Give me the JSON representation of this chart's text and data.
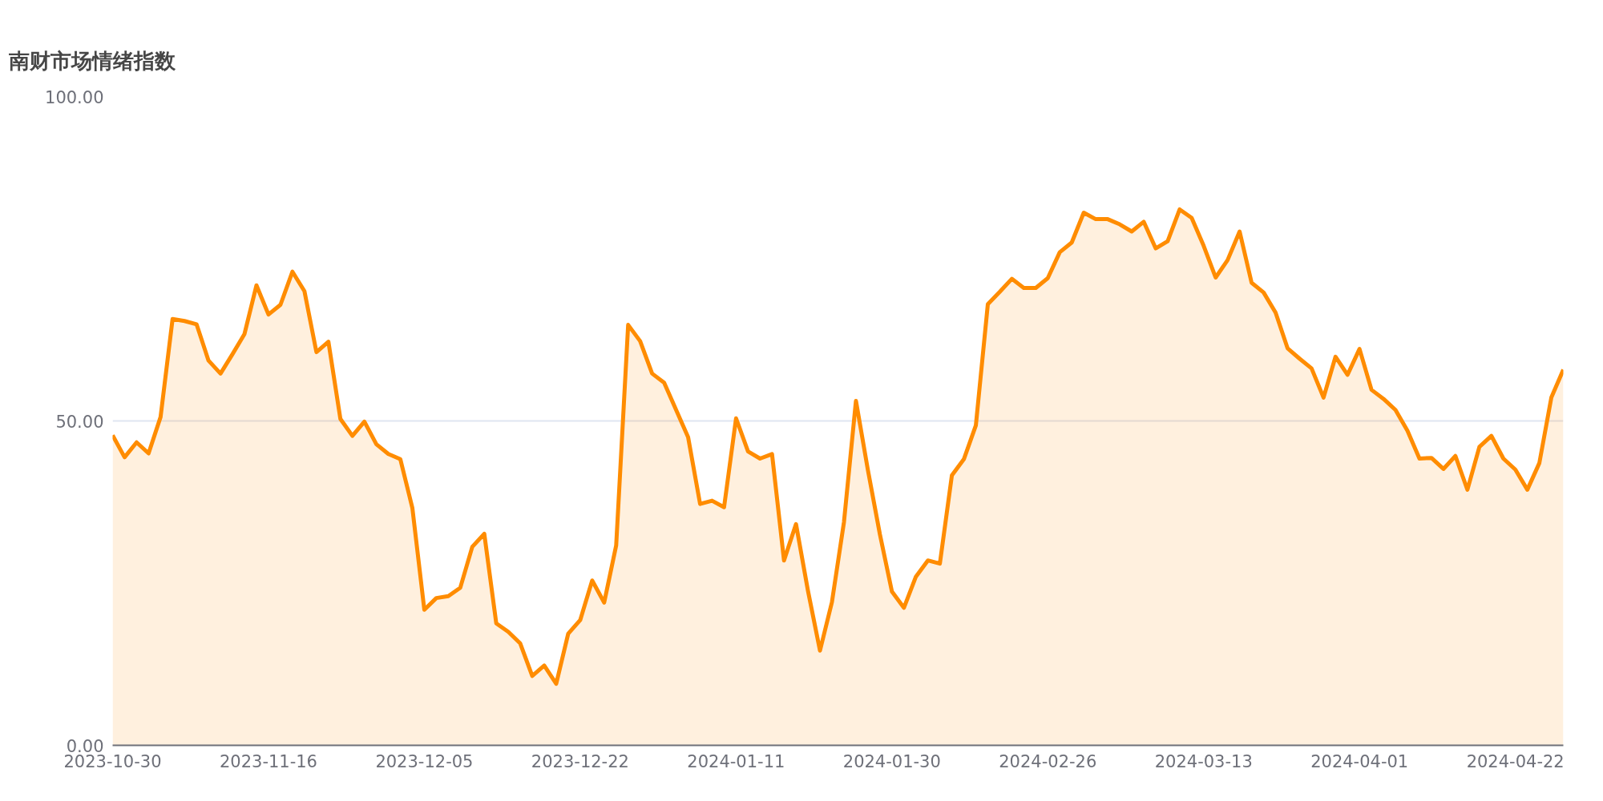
{
  "chart_data": {
    "type": "area",
    "title": "南财市场情绪指数",
    "categories": [
      "2023-10-30",
      null,
      null,
      null,
      null,
      null,
      null,
      null,
      null,
      null,
      null,
      null,
      null,
      "2023-11-16",
      null,
      null,
      null,
      null,
      null,
      null,
      null,
      null,
      null,
      null,
      null,
      null,
      "2023-12-05",
      null,
      null,
      null,
      null,
      null,
      null,
      null,
      null,
      null,
      null,
      null,
      null,
      "2023-12-22",
      null,
      null,
      null,
      null,
      null,
      null,
      null,
      null,
      null,
      null,
      null,
      null,
      "2024-01-11",
      null,
      null,
      null,
      null,
      null,
      null,
      null,
      null,
      null,
      null,
      null,
      null,
      "2024-01-30",
      null,
      null,
      null,
      null,
      null,
      null,
      null,
      null,
      null,
      null,
      null,
      null,
      "2024-02-26",
      null,
      null,
      null,
      null,
      null,
      null,
      null,
      null,
      null,
      null,
      null,
      null,
      "2024-03-13",
      null,
      null,
      null,
      null,
      null,
      null,
      null,
      null,
      null,
      null,
      null,
      null,
      "2024-04-01",
      null,
      null,
      null,
      null,
      null,
      null,
      null,
      null,
      null,
      null,
      null,
      null,
      "2024-04-22",
      null,
      null,
      null,
      null
    ],
    "series": [
      {
        "color": "#ff8c00",
        "values": [
          47.8,
          44.4,
          46.7,
          45.0,
          50.6,
          65.7,
          65.4,
          64.9,
          59.3,
          57.3,
          60.3,
          63.4,
          70.9,
          66.4,
          67.9,
          73.0,
          70.0,
          60.6,
          62.2,
          50.3,
          47.7,
          49.9,
          46.4,
          44.9,
          44.1,
          36.6,
          20.9,
          22.7,
          23.0,
          24.3,
          30.6,
          32.6,
          18.8,
          17.5,
          15.7,
          10.7,
          12.3,
          9.5,
          17.2,
          19.3,
          25.4,
          22.0,
          30.8,
          64.8,
          62.3,
          57.3,
          55.9,
          51.7,
          47.5,
          37.2,
          37.7,
          36.7,
          50.4,
          45.3,
          44.2,
          44.9,
          28.5,
          34.1,
          23.8,
          14.6,
          22.1,
          34.4,
          53.1,
          42.4,
          32.5,
          23.7,
          21.2,
          26.0,
          28.5,
          28.0,
          41.6,
          44.1,
          49.3,
          68.0,
          69.9,
          71.9,
          70.5,
          70.5,
          72.0,
          76.0,
          77.5,
          82.1,
          81.1,
          81.1,
          80.3,
          79.2,
          80.7,
          76.6,
          77.7,
          82.6,
          81.3,
          77.0,
          72.1,
          74.8,
          79.2,
          71.3,
          69.8,
          66.7,
          61.2,
          59.6,
          58.1,
          53.6,
          59.9,
          57.1,
          61.1,
          54.8,
          53.4,
          51.7,
          48.5,
          44.2,
          44.3,
          42.6,
          44.6,
          39.4,
          46.0,
          47.7,
          44.2,
          42.5,
          39.4,
          43.5,
          53.6,
          57.9
        ]
      }
    ],
    "ylim": [
      0,
      100
    ],
    "yticks": [
      {
        "value": 0,
        "label": "0.00"
      },
      {
        "value": 50,
        "label": "50.00"
      },
      {
        "value": 100,
        "label": "100.00"
      }
    ],
    "grid": "y",
    "marker": "none",
    "line_style": "solid"
  }
}
